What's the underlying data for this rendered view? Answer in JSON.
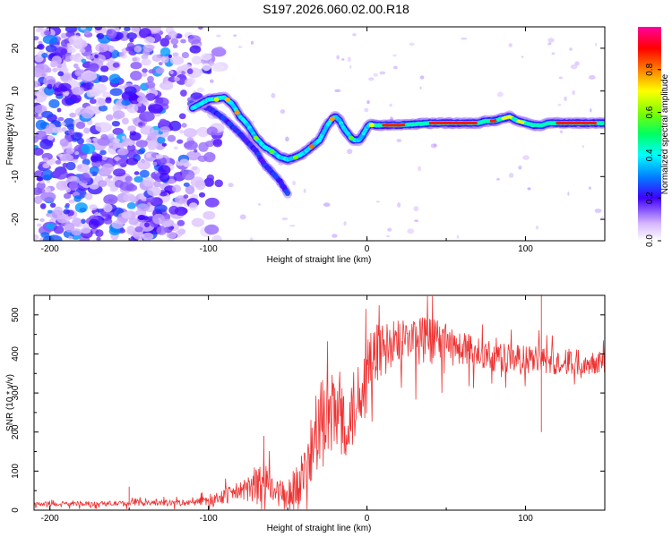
{
  "title": "S197.2026.060.02.00.R18",
  "chart_data": [
    {
      "type": "heatmap",
      "xlabel": "Height of straight line (km)",
      "ylabel": "Frequency (Hz)",
      "xlim": [
        -210,
        150
      ],
      "ylim": [
        -25,
        25
      ],
      "x_ticks": [
        -200,
        -100,
        0,
        100
      ],
      "y_ticks": [
        -20,
        -10,
        0,
        10,
        20
      ],
      "colorbar": {
        "label": "Normalized spectral amplitude",
        "ticks": [
          0.0,
          0.2,
          0.4,
          0.6,
          0.8
        ],
        "range": [
          0,
          1
        ]
      },
      "ridge": {
        "x": [
          -110,
          -100,
          -90,
          -85,
          -80,
          -75,
          -70,
          -65,
          -60,
          -55,
          -50,
          -45,
          -40,
          -35,
          -30,
          -25,
          -22,
          -20,
          -17,
          -15,
          -12,
          -10,
          -8,
          -5,
          -3,
          0,
          2,
          5,
          10,
          20,
          40,
          60,
          70,
          75,
          80,
          85,
          90,
          95,
          100,
          105,
          110,
          115,
          120,
          130,
          140,
          150
        ],
        "y": [
          6,
          8,
          8.5,
          7,
          4,
          2,
          -1,
          -3,
          -4,
          -5.5,
          -6,
          -5.5,
          -4.5,
          -3,
          -1.5,
          2,
          3.5,
          4,
          3,
          1.5,
          0,
          -1,
          -1.5,
          -1.5,
          -0.5,
          1.5,
          2.2,
          2,
          2,
          2,
          2.5,
          2.5,
          2.5,
          3,
          3,
          3.5,
          4,
          3,
          2.5,
          2,
          2,
          2.5,
          2.5,
          2.5,
          2.5,
          2.5
        ]
      },
      "branch": {
        "x": [
          -110,
          -100,
          -90,
          -80,
          -70,
          -65,
          -60,
          -55,
          -50
        ],
        "y": [
          7,
          6,
          3.5,
          0,
          -4,
          -7,
          -9,
          -11,
          -14
        ]
      },
      "noise_region": [
        -210,
        -100
      ]
    },
    {
      "type": "line",
      "xlabel": "Height of straight line (km)",
      "ylabel": "SNR (10 * v/v)",
      "xlim": [
        -210,
        150
      ],
      "ylim": [
        0,
        550
      ],
      "x_ticks": [
        -200,
        -100,
        0,
        100
      ],
      "y_ticks": [
        0,
        100,
        200,
        300,
        400,
        500
      ],
      "series": [
        {
          "name": "SNR",
          "color": "#ee3333",
          "envelope_x": [
            -210,
            -110,
            -100,
            -90,
            -80,
            -70,
            -65,
            -60,
            -50,
            -45,
            -40,
            -35,
            -30,
            -20,
            -15,
            -10,
            -5,
            0,
            10,
            20,
            30,
            40,
            60,
            80,
            100,
            120,
            150
          ],
          "envelope_base": [
            15,
            18,
            25,
            35,
            45,
            55,
            60,
            45,
            35,
            60,
            80,
            140,
            200,
            230,
            230,
            230,
            280,
            380,
            400,
            420,
            430,
            430,
            410,
            390,
            380,
            375,
            380
          ],
          "envelope_amp": [
            8,
            12,
            20,
            30,
            40,
            70,
            90,
            60,
            55,
            80,
            110,
            150,
            180,
            180,
            160,
            160,
            150,
            120,
            110,
            100,
            100,
            90,
            70,
            60,
            60,
            55,
            50
          ]
        }
      ]
    }
  ]
}
